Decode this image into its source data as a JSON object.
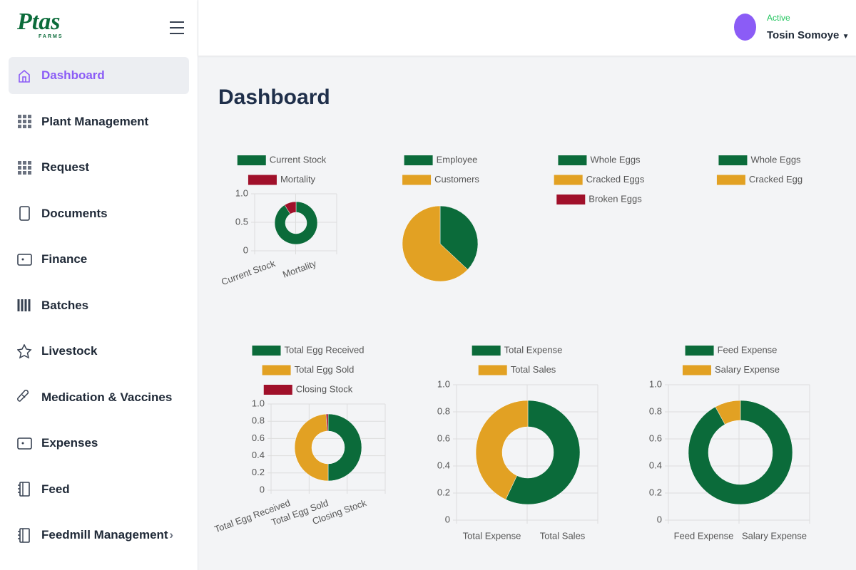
{
  "sidebar": {
    "logo": "Ptas",
    "logo_sub": "FARMS",
    "nav": [
      "Dashboard",
      "Plant Management",
      "Request",
      "Documents",
      "Finance",
      "Batches",
      "Livestock",
      "Medication & Vaccines",
      "Expenses",
      "Feed",
      "Feedmill Management"
    ]
  },
  "header": {
    "status": "Active",
    "user": "Tosin Somoye"
  },
  "page_title": "Dashboard",
  "chart_data": [
    {
      "type": "doughnut",
      "categories": [
        "Current Stock",
        "Mortality"
      ],
      "values": [
        91,
        9
      ],
      "colors": [
        "#0b6b3a",
        "#a0102a"
      ],
      "ylim": [
        0,
        1
      ],
      "yticks": [
        0,
        0.5,
        {
          "value": 1,
          "label": "1.0"
        }
      ]
    },
    {
      "type": "pie",
      "categories": [
        "Employee",
        "Customers"
      ],
      "values": [
        37,
        63
      ],
      "colors": [
        "#0b6b3a",
        "#e2a123"
      ]
    },
    {
      "type": "pie",
      "categories": [
        "Whole Eggs",
        "Cracked Eggs",
        "Broken Eggs"
      ],
      "values": [
        0,
        0,
        0
      ],
      "colors": [
        "#0b6b3a",
        "#e2a123",
        "#a0102a"
      ]
    },
    {
      "type": "pie",
      "categories": [
        "Whole Eggs",
        "Cracked Egg"
      ],
      "values": [
        0,
        0
      ],
      "colors": [
        "#0b6b3a",
        "#e2a123"
      ]
    },
    {
      "type": "doughnut",
      "categories": [
        "Total Egg Received",
        "Total Egg Sold",
        "Closing Stock"
      ],
      "values": [
        50,
        49,
        1
      ],
      "colors": [
        "#0b6b3a",
        "#e2a123",
        "#a0102a"
      ],
      "ylim": [
        0,
        1
      ],
      "yticks": [
        0,
        0.2,
        0.4,
        0.6,
        0.8,
        {
          "value": 1,
          "label": "1.0"
        }
      ]
    },
    {
      "type": "doughnut",
      "categories": [
        "Total Expense",
        "Total Sales"
      ],
      "values": [
        57,
        43
      ],
      "colors": [
        "#0b6b3a",
        "#e2a123"
      ],
      "ylim": [
        0,
        1
      ],
      "yticks": [
        0,
        0.2,
        0.4,
        0.6,
        0.8,
        {
          "value": 1,
          "label": "1.0"
        }
      ]
    },
    {
      "type": "doughnut",
      "categories": [
        "Feed Expense",
        "Salary Expense"
      ],
      "values": [
        92,
        8
      ],
      "colors": [
        "#0b6b3a",
        "#e2a123"
      ],
      "ylim": [
        0,
        1
      ],
      "yticks": [
        0,
        0.2,
        0.4,
        0.6,
        0.8,
        {
          "value": 1,
          "label": "1.0"
        }
      ]
    }
  ]
}
